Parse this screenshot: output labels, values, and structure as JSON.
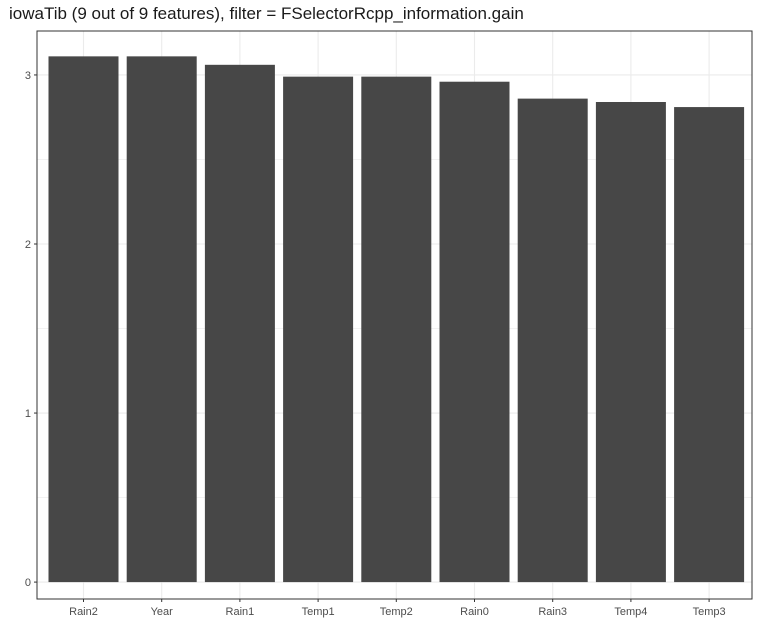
{
  "chart_data": {
    "type": "bar",
    "title": "iowaTib (9 out of 9 features), filter = FSelectorRcpp_information.gain",
    "categories": [
      "Rain2",
      "Year",
      "Rain1",
      "Temp1",
      "Temp2",
      "Rain0",
      "Rain3",
      "Temp4",
      "Temp3"
    ],
    "values": [
      3.11,
      3.11,
      3.06,
      2.99,
      2.99,
      2.96,
      2.86,
      2.84,
      2.81
    ],
    "xlabel": "",
    "ylabel": "",
    "ylim": [
      -0.1,
      3.26
    ],
    "yticks": [
      0,
      1,
      2,
      3
    ],
    "grid": true,
    "bar_color": "#474747",
    "grid_color": "#ebebeb",
    "panel_border_color": "#333333"
  }
}
